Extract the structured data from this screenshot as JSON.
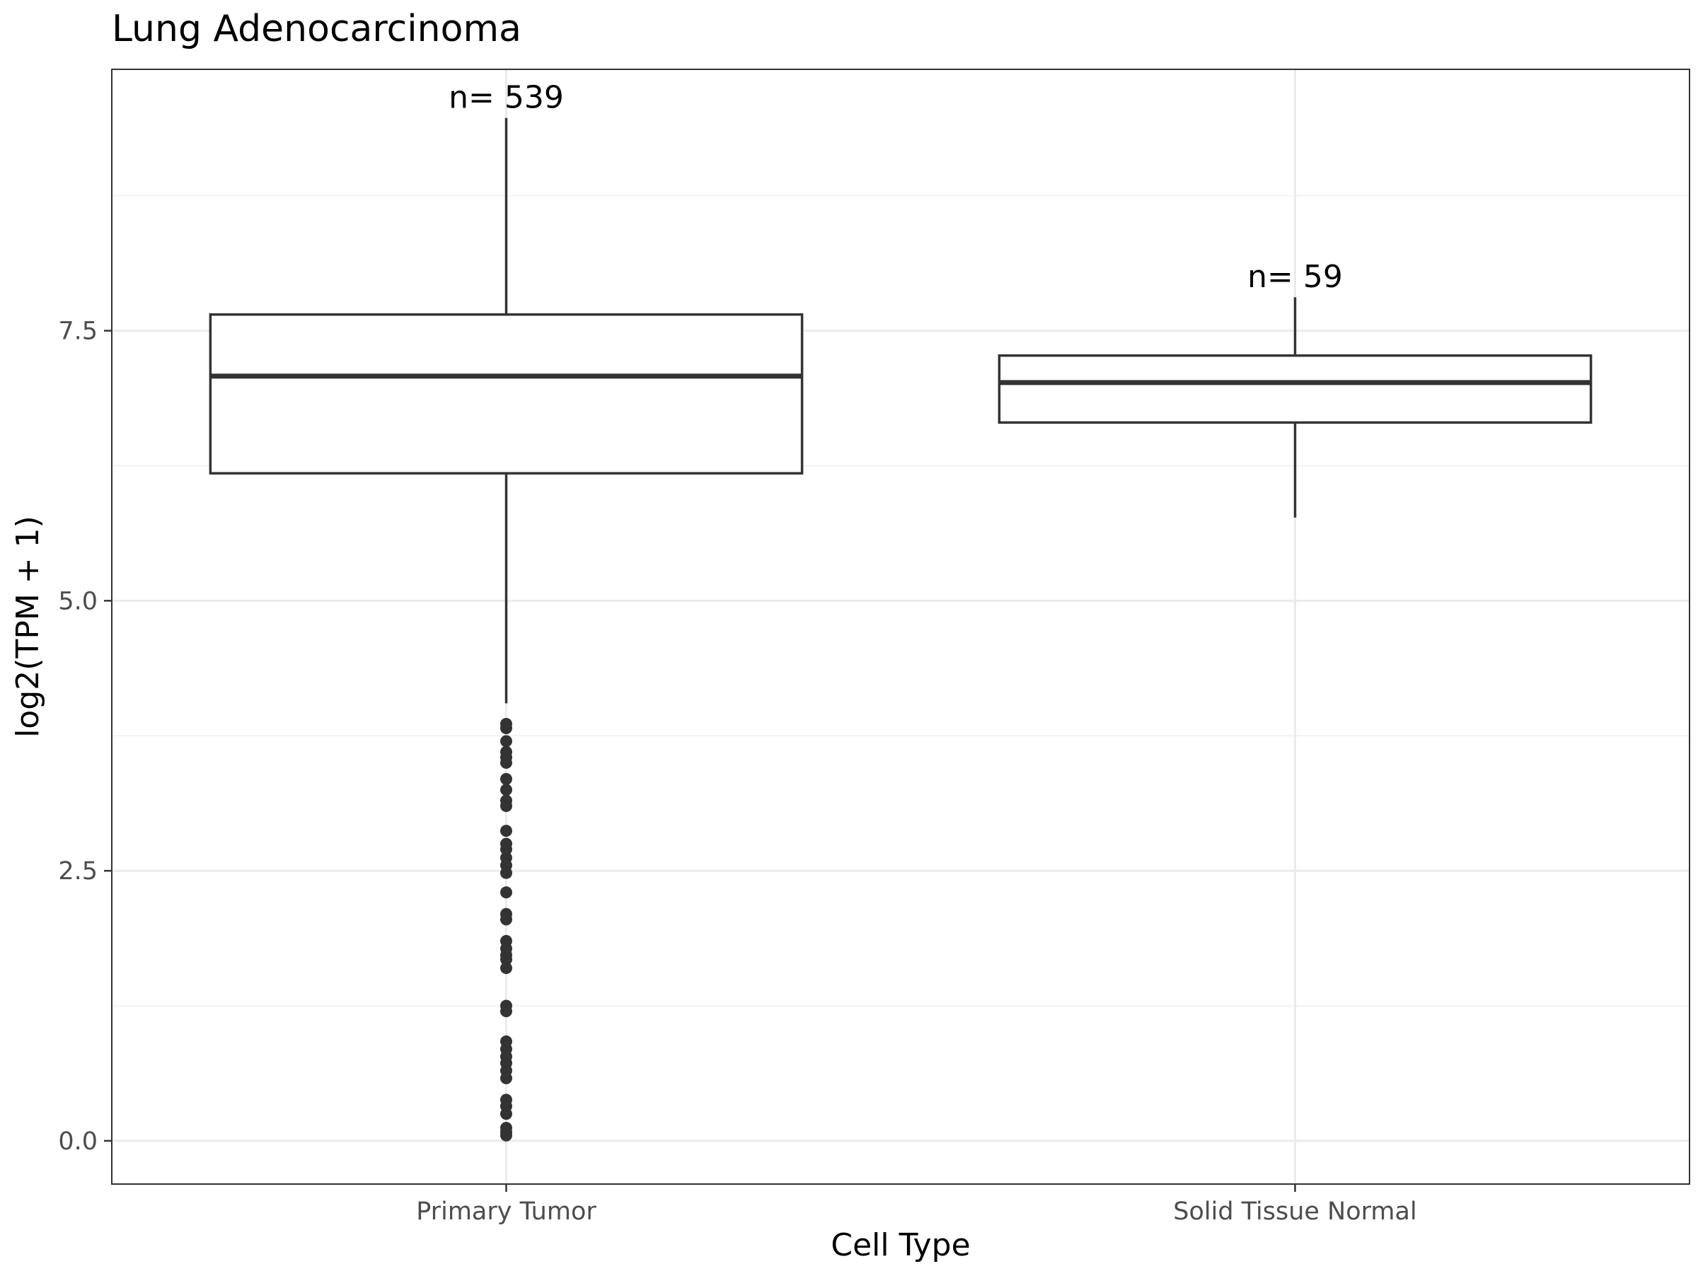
{
  "chart_data": {
    "type": "box",
    "title": "Lung Adenocarcinoma",
    "xlabel": "Cell Type",
    "ylabel": "log2(TPM + 1)",
    "categories": [
      "Primary Tumor",
      "Solid Tissue Normal"
    ],
    "ylim": [
      -0.4,
      9.92
    ],
    "yticks": [
      0.0,
      2.5,
      5.0,
      7.5
    ],
    "ytick_labels": [
      "0.0",
      "2.5",
      "5.0",
      "7.5"
    ],
    "grid": true,
    "boxes": [
      {
        "category": "Primary Tumor",
        "count_label": "n= 539",
        "whisker_low": 4.05,
        "q1": 6.18,
        "median": 7.08,
        "q3": 7.65,
        "whisker_high": 9.47,
        "outliers": [
          3.86,
          3.82,
          3.7,
          3.6,
          3.55,
          3.5,
          3.35,
          3.25,
          3.15,
          3.1,
          2.87,
          2.75,
          2.7,
          2.62,
          2.55,
          2.48,
          2.3,
          2.1,
          2.05,
          1.85,
          1.78,
          1.72,
          1.68,
          1.6,
          1.25,
          1.2,
          0.92,
          0.85,
          0.78,
          0.72,
          0.65,
          0.58,
          0.38,
          0.32,
          0.25,
          0.12,
          0.08,
          0.05
        ]
      },
      {
        "category": "Solid Tissue Normal",
        "count_label": "n= 59",
        "whisker_low": 5.77,
        "q1": 6.65,
        "median": 7.02,
        "q3": 7.27,
        "whisker_high": 7.81,
        "outliers": []
      }
    ]
  },
  "colors": {
    "box_stroke": "#333333",
    "box_fill": "#ffffff",
    "grid_major": "#ebebeb",
    "grid_minor": "#f2f2f2",
    "panel_border": "#333333",
    "tick_text": "#4d4d4d",
    "title_text": "#000000"
  }
}
